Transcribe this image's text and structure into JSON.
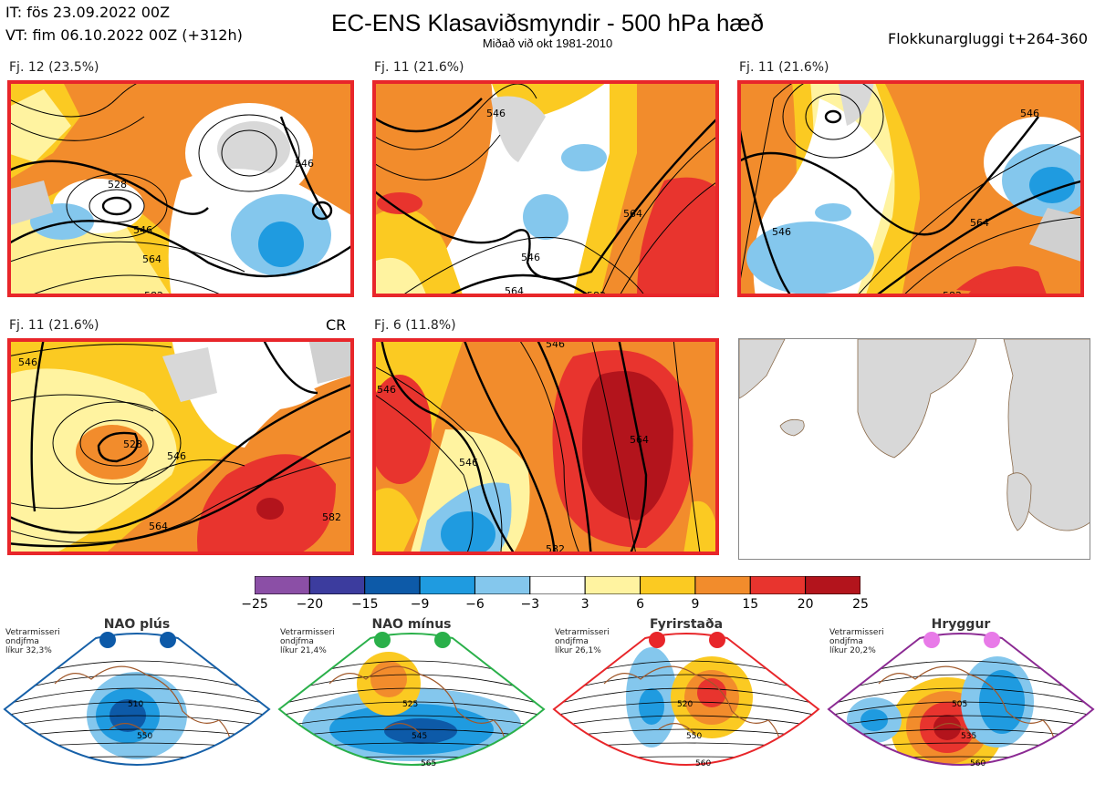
{
  "header": {
    "issue_time": "IT: fös 23.09.2022 00Z",
    "valid_time": "VT: fim 06.10.2022 00Z  (+312h)",
    "title": "EC-ENS Klasaviðsmyndir - 500 hPa hæð",
    "subtitle": "Miðað við okt 1981-2010",
    "window": "Flokkunargluggi t+264-360"
  },
  "panels": [
    {
      "label": "Fj. 12 (23.5%)",
      "contours": [
        "528",
        "546",
        "564",
        "582",
        "546"
      ]
    },
    {
      "label": "Fj. 11 (21.6%)",
      "contours": [
        "546",
        "546",
        "564",
        "564",
        "582"
      ]
    },
    {
      "label": "Fj. 11 (21.6%)",
      "contours": [
        "546",
        "546",
        "564",
        "582"
      ]
    },
    {
      "label": "Fj. 11 (21.6%)",
      "extra": "CR",
      "contours": [
        "528",
        "546",
        "546",
        "564",
        "582"
      ]
    },
    {
      "label": "Fj. 6 (11.8%)",
      "contours": [
        "546",
        "546",
        "564",
        "582",
        "546"
      ]
    }
  ],
  "chart_data": {
    "type": "heatmap",
    "title": "EC-ENS Klasaviðsmyndir - 500 hPa hæð",
    "colorbar": {
      "ticks": [
        "−25",
        "−20",
        "−15",
        "−9",
        "−6",
        "−3",
        "3",
        "6",
        "9",
        "15",
        "20",
        "25"
      ],
      "bins": [
        -25,
        -20,
        -15,
        -9,
        -6,
        -3,
        3,
        6,
        9,
        15,
        20,
        25
      ],
      "colors": [
        "#8b4fa6",
        "#3c3c9e",
        "#0d5aa8",
        "#1f9be0",
        "#84c7ed",
        "#ffffff",
        "#fff3a0",
        "#fbca22",
        "#f28c2c",
        "#e8342e",
        "#b3141c"
      ]
    },
    "clusters": [
      {
        "name": "Fj. 12",
        "members": 12,
        "percent": 23.5
      },
      {
        "name": "Fj. 11",
        "members": 11,
        "percent": 21.6
      },
      {
        "name": "Fj. 11",
        "members": 11,
        "percent": 21.6
      },
      {
        "name": "Fj. 11",
        "members": 11,
        "percent": 21.6
      },
      {
        "name": "Fj. 6",
        "members": 6,
        "percent": 11.8
      }
    ]
  },
  "regimes": [
    {
      "name": "NAO plús",
      "note": [
        "Vetrarmisseri",
        "ondjfma",
        "líkur 32,3%"
      ],
      "dot_color": "#0d5aa8",
      "border": "#1660a8",
      "contours": [
        "510",
        "550"
      ]
    },
    {
      "name": "NAO mínus",
      "note": [
        "Vetrarmisseri",
        "ondjfma",
        "líkur 21,4%"
      ],
      "dot_color": "#2ab04a",
      "border": "#2ab04a",
      "contours": [
        "525",
        "545",
        "565"
      ]
    },
    {
      "name": "Fyrirstaða",
      "note": [
        "Vetrarmisseri",
        "ondjfma",
        "líkur 26,1%"
      ],
      "dot_color": "#e8262a",
      "border": "#e8262a",
      "contours": [
        "520",
        "550",
        "560"
      ]
    },
    {
      "name": "Hryggur",
      "note": [
        "Vetrarmisseri",
        "ondjfma",
        "líkur 20,2%"
      ],
      "dot_color": "#e87ae8",
      "border": "#8b2a93",
      "contours": [
        "505",
        "535",
        "560"
      ]
    }
  ]
}
